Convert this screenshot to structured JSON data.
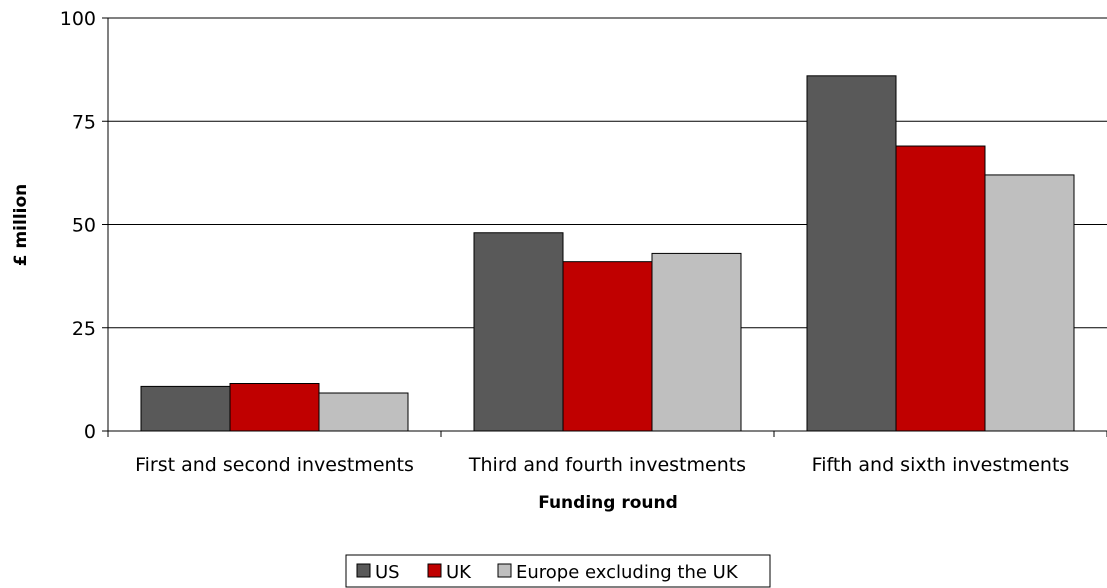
{
  "chart_data": {
    "type": "bar",
    "categories": [
      "First and second investments",
      "Third and fourth investments",
      "Fifth and sixth investments"
    ],
    "series": [
      {
        "name": "US",
        "values": [
          10.8,
          48,
          86
        ],
        "color": "#595959"
      },
      {
        "name": "UK",
        "values": [
          11.5,
          41,
          69
        ],
        "color": "#c00000"
      },
      {
        "name": "Europe excluding the UK",
        "values": [
          9.2,
          43,
          62
        ],
        "color": "#bfbfbf"
      }
    ],
    "xlabel": "Funding round",
    "ylabel": "£ million",
    "ylim": [
      0,
      100
    ],
    "yticks": [
      "0",
      "25",
      "50",
      "75",
      "100"
    ],
    "grid": true,
    "legend_position": "bottom"
  }
}
